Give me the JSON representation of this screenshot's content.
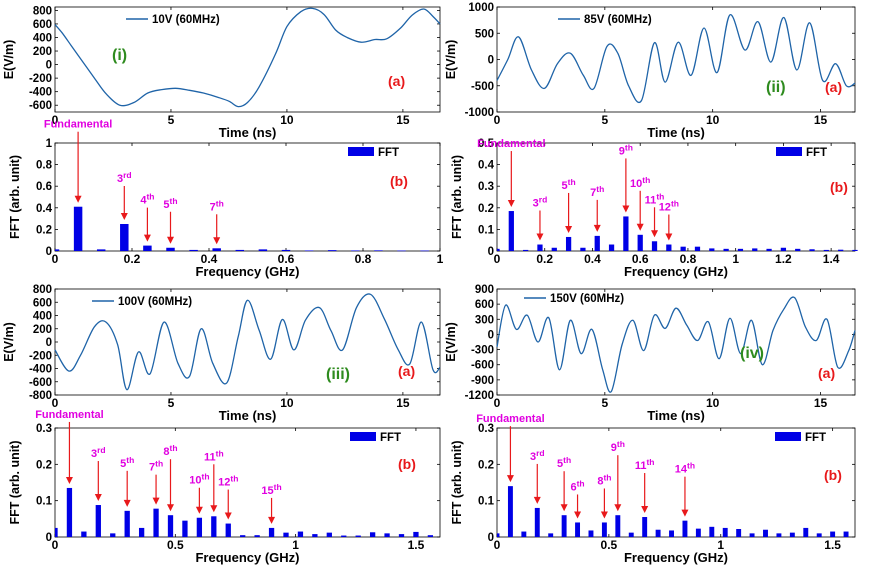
{
  "colors": {
    "signal": "#1f64a8",
    "bar": "#0000e6",
    "arrow": "#e8191b",
    "harmonic_label": "#e000e0",
    "panel_tag": "#e8191b",
    "case_label": "#2e8b1e",
    "axis": "#000000"
  },
  "chart_data": [
    {
      "type": "line",
      "name": "time-1",
      "panel_tag": "(a)",
      "case_label": "(i)",
      "legend": "10V (60MHz)",
      "xlabel": "Time (ns)",
      "ylabel": "E(V/m)",
      "xlim": [
        0,
        16.6
      ],
      "ylim": [
        -700,
        850
      ],
      "xticks": [
        0,
        5,
        10,
        15
      ],
      "yticks": [
        -600,
        -400,
        -200,
        0,
        200,
        400,
        600,
        800
      ],
      "x": [
        0,
        0.3,
        0.7,
        1.2,
        1.7,
        2.2,
        2.8,
        3.4,
        4.0,
        4.6,
        5.2,
        5.8,
        6.4,
        7.0,
        7.5,
        7.9,
        8.3,
        8.8,
        9.5,
        10.0,
        10.6,
        11.1,
        11.6,
        12.1,
        12.6,
        13.2,
        13.8,
        14.3,
        14.9,
        15.4,
        15.9,
        16.3,
        16.6
      ],
      "y": [
        590,
        470,
        280,
        40,
        -200,
        -430,
        -600,
        -560,
        -420,
        -370,
        -350,
        -380,
        -420,
        -480,
        -540,
        -620,
        -560,
        -330,
        150,
        560,
        780,
        830,
        740,
        510,
        400,
        330,
        370,
        380,
        540,
        730,
        820,
        710,
        600
      ]
    },
    {
      "type": "bar",
      "name": "fft-1",
      "panel_tag": "(b)",
      "legend": "FFT",
      "xlabel": "Frequency (GHz)",
      "ylabel": "FFT (arb. unit)",
      "xlim": [
        0,
        1
      ],
      "ylim": [
        0,
        1
      ],
      "xticks": [
        0,
        0.2,
        0.4,
        0.6,
        0.8,
        1
      ],
      "xtick_labels": [
        "0",
        "0.2",
        "0.4",
        "0.6",
        "0.8",
        "1"
      ],
      "yticks": [
        0,
        0.2,
        0.4,
        0.6,
        0.8,
        1
      ],
      "ytick_labels": [
        "0",
        "0.2",
        "0.4",
        "0.6",
        "0.8",
        "1"
      ],
      "x": [
        0.0,
        0.06,
        0.12,
        0.18,
        0.24,
        0.3,
        0.36,
        0.42,
        0.48,
        0.54,
        0.6,
        0.66,
        0.72,
        0.78,
        0.84,
        0.9,
        0.96
      ],
      "values": [
        0.015,
        0.41,
        0.015,
        0.25,
        0.05,
        0.03,
        0.01,
        0.025,
        0.01,
        0.015,
        0.01,
        0.005,
        0.008,
        0.005,
        0.006,
        0.004,
        0.004
      ],
      "annotations": [
        {
          "base": "Fundamental",
          "sup": "",
          "x": 0.06,
          "lift": 75
        },
        {
          "base": "3",
          "sup": "rd",
          "x": 0.18,
          "lift": 38
        },
        {
          "base": "4",
          "sup": "th",
          "x": 0.24,
          "lift": 38
        },
        {
          "base": "5",
          "sup": "th",
          "x": 0.3,
          "lift": 36
        },
        {
          "base": "7",
          "sup": "th",
          "x": 0.42,
          "lift": 34
        }
      ]
    },
    {
      "type": "line",
      "name": "time-2",
      "panel_tag": "(a)",
      "case_label": "(ii)",
      "legend": "85V (60MHz)",
      "xlabel": "Time (ns)",
      "ylabel": "E(V/m)",
      "xlim": [
        0,
        16.6
      ],
      "ylim": [
        -1000,
        1000
      ],
      "xticks": [
        0,
        5,
        10,
        15
      ],
      "yticks": [
        -1000,
        -500,
        0,
        500,
        1000
      ],
      "x": [
        0,
        0.5,
        1.0,
        1.6,
        2.2,
        2.8,
        3.4,
        4.0,
        4.5,
        5.1,
        5.6,
        6.1,
        6.7,
        7.3,
        7.8,
        8.4,
        9.0,
        9.6,
        10.2,
        10.8,
        11.5,
        12.1,
        12.7,
        13.3,
        13.9,
        14.5,
        15.1,
        15.7,
        16.2,
        16.6
      ],
      "y": [
        -400,
        0,
        430,
        -200,
        -550,
        -80,
        120,
        -300,
        -550,
        250,
        120,
        -500,
        -780,
        320,
        -430,
        330,
        -300,
        600,
        -250,
        850,
        180,
        720,
        -50,
        800,
        -200,
        700,
        -400,
        -80,
        -500,
        -450
      ]
    },
    {
      "type": "bar",
      "name": "fft-2",
      "panel_tag": "(b)",
      "legend": "FFT",
      "xlabel": "Frequency (GHz)",
      "ylabel": "FFT (arb. unit)",
      "xlim": [
        0,
        1.5
      ],
      "ylim": [
        0,
        0.5
      ],
      "xticks": [
        0,
        0.2,
        0.4,
        0.6,
        0.8,
        1,
        1.2,
        1.4
      ],
      "xtick_labels": [
        "0",
        "0.2",
        "0.4",
        "0.6",
        "0.8",
        "1",
        "1.2",
        "1.4"
      ],
      "yticks": [
        0,
        0.1,
        0.2,
        0.3,
        0.4,
        0.5
      ],
      "ytick_labels": [
        "0",
        "0.1",
        "0.2",
        "0.3",
        "0.4",
        "0.5"
      ],
      "x": [
        0.0,
        0.06,
        0.12,
        0.18,
        0.24,
        0.3,
        0.36,
        0.42,
        0.48,
        0.54,
        0.6,
        0.66,
        0.72,
        0.78,
        0.84,
        0.9,
        0.96,
        1.02,
        1.08,
        1.14,
        1.2,
        1.26,
        1.32,
        1.38,
        1.44,
        1.5
      ],
      "values": [
        0.01,
        0.185,
        0.005,
        0.03,
        0.015,
        0.065,
        0.015,
        0.07,
        0.03,
        0.16,
        0.075,
        0.045,
        0.03,
        0.02,
        0.02,
        0.012,
        0.01,
        0.01,
        0.012,
        0.01,
        0.015,
        0.01,
        0.008,
        0.005,
        0.006,
        0.005
      ],
      "annotations": [
        {
          "base": "Fundamental",
          "sup": "",
          "x": 0.06,
          "lift": 60
        },
        {
          "base": "3",
          "sup": "rd",
          "x": 0.18,
          "lift": 34
        },
        {
          "base": "5",
          "sup": "th",
          "x": 0.3,
          "lift": 44
        },
        {
          "base": "7",
          "sup": "th",
          "x": 0.42,
          "lift": 36
        },
        {
          "base": "9",
          "sup": "th",
          "x": 0.54,
          "lift": 58
        },
        {
          "base": "10",
          "sup": "th",
          "x": 0.6,
          "lift": 44
        },
        {
          "base": "11",
          "sup": "th",
          "x": 0.66,
          "lift": 34
        },
        {
          "base": "12",
          "sup": "th",
          "x": 0.72,
          "lift": 30
        }
      ]
    },
    {
      "type": "line",
      "name": "time-3",
      "panel_tag": "(a)",
      "case_label": "(iii)",
      "legend": "100V (60MHz)",
      "xlabel": "Time (ns)",
      "ylabel": "E(V/m)",
      "xlim": [
        0,
        16.6
      ],
      "ylim": [
        -800,
        800
      ],
      "xticks": [
        0,
        5,
        10,
        15
      ],
      "yticks": [
        -800,
        -600,
        -400,
        -200,
        0,
        200,
        400,
        600,
        800
      ],
      "x": [
        0,
        0.6,
        1.1,
        1.7,
        2.2,
        2.7,
        3.1,
        3.6,
        4.1,
        4.7,
        5.3,
        5.8,
        6.3,
        6.8,
        7.4,
        7.9,
        8.3,
        8.8,
        9.3,
        9.8,
        10.3,
        10.8,
        11.4,
        11.9,
        12.4,
        13.0,
        13.6,
        14.2,
        14.8,
        15.3,
        15.8,
        16.3,
        16.6
      ],
      "y": [
        -120,
        -440,
        -200,
        230,
        300,
        -40,
        -720,
        -150,
        -480,
        300,
        -320,
        -520,
        200,
        -320,
        -620,
        80,
        630,
        180,
        -260,
        340,
        -120,
        330,
        520,
        170,
        -120,
        520,
        720,
        350,
        -120,
        -330,
        300,
        -420,
        -380
      ]
    },
    {
      "type": "bar",
      "name": "fft-3",
      "panel_tag": "(b)",
      "legend": "FFT",
      "xlabel": "Frequency (GHz)",
      "ylabel": "FFT (arb. unit)",
      "xlim": [
        0,
        1.6
      ],
      "ylim": [
        0,
        0.3
      ],
      "xticks": [
        0,
        0.5,
        1,
        1.5
      ],
      "xtick_labels": [
        "0",
        "0.5",
        "1",
        "1.5"
      ],
      "yticks": [
        0,
        0.1,
        0.2,
        0.3
      ],
      "ytick_labels": [
        "0",
        "0.1",
        "0.2",
        "0.3"
      ],
      "x": [
        0.0,
        0.06,
        0.12,
        0.18,
        0.24,
        0.3,
        0.36,
        0.42,
        0.48,
        0.54,
        0.6,
        0.66,
        0.72,
        0.78,
        0.84,
        0.9,
        0.96,
        1.02,
        1.08,
        1.14,
        1.2,
        1.26,
        1.32,
        1.38,
        1.44,
        1.5,
        1.56
      ],
      "values": [
        0.025,
        0.135,
        0.015,
        0.088,
        0.01,
        0.072,
        0.025,
        0.078,
        0.06,
        0.045,
        0.053,
        0.057,
        0.037,
        0.005,
        0.005,
        0.025,
        0.012,
        0.015,
        0.008,
        0.012,
        0.004,
        0.004,
        0.013,
        0.01,
        0.008,
        0.014,
        0.005
      ],
      "annotations": [
        {
          "base": "Fundamental",
          "sup": "",
          "x": 0.06,
          "lift": 66
        },
        {
          "base": "3",
          "sup": "rd",
          "x": 0.18,
          "lift": 44
        },
        {
          "base": "5",
          "sup": "th",
          "x": 0.3,
          "lift": 40
        },
        {
          "base": "7",
          "sup": "th",
          "x": 0.42,
          "lift": 34
        },
        {
          "base": "8",
          "sup": "th",
          "x": 0.48,
          "lift": 56
        },
        {
          "base": "10",
          "sup": "th",
          "x": 0.6,
          "lift": 30
        },
        {
          "base": "11",
          "sup": "th",
          "x": 0.66,
          "lift": 52
        },
        {
          "base": "12",
          "sup": "th",
          "x": 0.72,
          "lift": 34
        },
        {
          "base": "15",
          "sup": "th",
          "x": 0.9,
          "lift": 30
        }
      ]
    },
    {
      "type": "line",
      "name": "time-4",
      "panel_tag": "(a)",
      "case_label": "(iv)",
      "legend": "150V (60MHz)",
      "xlabel": "Time (ns)",
      "ylabel": "E(V/m)",
      "xlim": [
        0,
        16.6
      ],
      "ylim": [
        -1200,
        900
      ],
      "xticks": [
        0,
        5,
        10,
        15
      ],
      "yticks": [
        -1200,
        -900,
        -600,
        -300,
        0,
        300,
        600,
        900
      ],
      "x": [
        0,
        0.4,
        0.9,
        1.4,
        1.9,
        2.4,
        2.9,
        3.4,
        3.9,
        4.4,
        4.9,
        5.3,
        5.8,
        6.3,
        6.8,
        7.3,
        7.8,
        8.3,
        8.8,
        9.3,
        9.8,
        10.3,
        10.8,
        11.3,
        11.8,
        12.3,
        12.8,
        13.3,
        13.8,
        14.3,
        14.8,
        15.3,
        15.8,
        16.3,
        16.6
      ],
      "y": [
        -250,
        580,
        100,
        380,
        -150,
        330,
        -700,
        280,
        -380,
        100,
        -700,
        -1130,
        -200,
        280,
        -320,
        380,
        120,
        520,
        180,
        -120,
        250,
        -480,
        320,
        -380,
        280,
        -600,
        80,
        500,
        730,
        150,
        -120,
        300,
        -650,
        -330,
        80
      ]
    },
    {
      "type": "bar",
      "name": "fft-4",
      "panel_tag": "(b)",
      "legend": "FFT",
      "xlabel": "Frequency (GHz)",
      "ylabel": "FFT (arb. unit)",
      "xlim": [
        0,
        1.6
      ],
      "ylim": [
        0,
        0.3
      ],
      "xticks": [
        0,
        0.5,
        1,
        1.5
      ],
      "xtick_labels": [
        "0",
        "0.5",
        "1",
        "1.5"
      ],
      "yticks": [
        0,
        0.1,
        0.2,
        0.3
      ],
      "ytick_labels": [
        "0",
        "0.1",
        "0.2",
        "0.3"
      ],
      "x": [
        0.0,
        0.06,
        0.12,
        0.18,
        0.24,
        0.3,
        0.36,
        0.42,
        0.48,
        0.54,
        0.6,
        0.66,
        0.72,
        0.78,
        0.84,
        0.9,
        0.96,
        1.02,
        1.08,
        1.14,
        1.2,
        1.26,
        1.32,
        1.38,
        1.44,
        1.5,
        1.56
      ],
      "values": [
        0.01,
        0.14,
        0.015,
        0.08,
        0.01,
        0.06,
        0.04,
        0.018,
        0.04,
        0.06,
        0.012,
        0.055,
        0.02,
        0.018,
        0.045,
        0.023,
        0.028,
        0.025,
        0.022,
        0.01,
        0.02,
        0.01,
        0.012,
        0.025,
        0.01,
        0.015,
        0.015
      ],
      "annotations": [
        {
          "base": "Fundamental",
          "sup": "",
          "x": 0.06,
          "lift": 60
        },
        {
          "base": "3",
          "sup": "rd",
          "x": 0.18,
          "lift": 44
        },
        {
          "base": "5",
          "sup": "th",
          "x": 0.3,
          "lift": 44
        },
        {
          "base": "6",
          "sup": "th",
          "x": 0.36,
          "lift": 28
        },
        {
          "base": "8",
          "sup": "th",
          "x": 0.48,
          "lift": 34
        },
        {
          "base": "9",
          "sup": "th",
          "x": 0.54,
          "lift": 60
        },
        {
          "base": "11",
          "sup": "th",
          "x": 0.66,
          "lift": 44
        },
        {
          "base": "14",
          "sup": "th",
          "x": 0.84,
          "lift": 44
        }
      ]
    }
  ]
}
